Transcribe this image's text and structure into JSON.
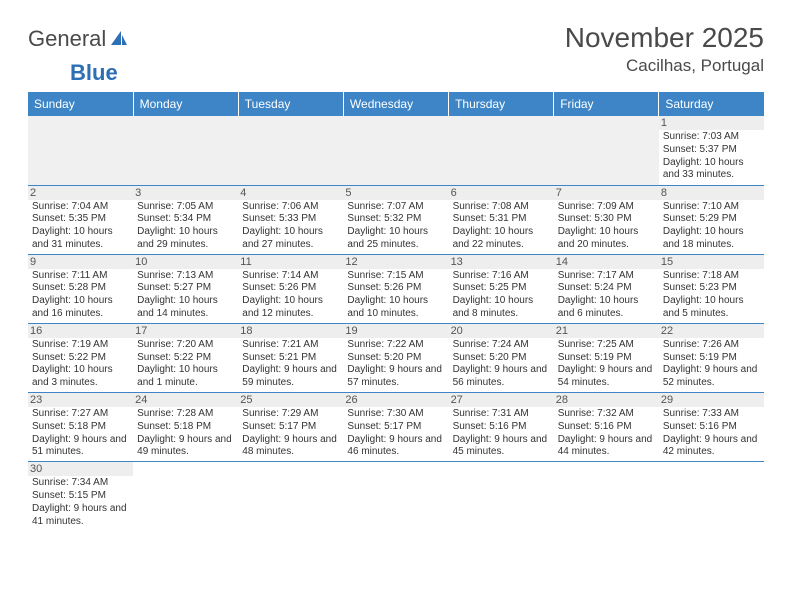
{
  "logo": {
    "text1": "General",
    "text2": "Blue"
  },
  "title": "November 2025",
  "location": "Cacilhas, Portugal",
  "colors": {
    "header_bg": "#3d85c6",
    "header_text": "#ffffff",
    "daynum_bg": "#eeeeee",
    "border": "#3d85c6",
    "text": "#333333"
  },
  "weekdays": [
    "Sunday",
    "Monday",
    "Tuesday",
    "Wednesday",
    "Thursday",
    "Friday",
    "Saturday"
  ],
  "days": {
    "1": {
      "sunrise": "7:03 AM",
      "sunset": "5:37 PM",
      "daylight": "10 hours and 33 minutes."
    },
    "2": {
      "sunrise": "7:04 AM",
      "sunset": "5:35 PM",
      "daylight": "10 hours and 31 minutes."
    },
    "3": {
      "sunrise": "7:05 AM",
      "sunset": "5:34 PM",
      "daylight": "10 hours and 29 minutes."
    },
    "4": {
      "sunrise": "7:06 AM",
      "sunset": "5:33 PM",
      "daylight": "10 hours and 27 minutes."
    },
    "5": {
      "sunrise": "7:07 AM",
      "sunset": "5:32 PM",
      "daylight": "10 hours and 25 minutes."
    },
    "6": {
      "sunrise": "7:08 AM",
      "sunset": "5:31 PM",
      "daylight": "10 hours and 22 minutes."
    },
    "7": {
      "sunrise": "7:09 AM",
      "sunset": "5:30 PM",
      "daylight": "10 hours and 20 minutes."
    },
    "8": {
      "sunrise": "7:10 AM",
      "sunset": "5:29 PM",
      "daylight": "10 hours and 18 minutes."
    },
    "9": {
      "sunrise": "7:11 AM",
      "sunset": "5:28 PM",
      "daylight": "10 hours and 16 minutes."
    },
    "10": {
      "sunrise": "7:13 AM",
      "sunset": "5:27 PM",
      "daylight": "10 hours and 14 minutes."
    },
    "11": {
      "sunrise": "7:14 AM",
      "sunset": "5:26 PM",
      "daylight": "10 hours and 12 minutes."
    },
    "12": {
      "sunrise": "7:15 AM",
      "sunset": "5:26 PM",
      "daylight": "10 hours and 10 minutes."
    },
    "13": {
      "sunrise": "7:16 AM",
      "sunset": "5:25 PM",
      "daylight": "10 hours and 8 minutes."
    },
    "14": {
      "sunrise": "7:17 AM",
      "sunset": "5:24 PM",
      "daylight": "10 hours and 6 minutes."
    },
    "15": {
      "sunrise": "7:18 AM",
      "sunset": "5:23 PM",
      "daylight": "10 hours and 5 minutes."
    },
    "16": {
      "sunrise": "7:19 AM",
      "sunset": "5:22 PM",
      "daylight": "10 hours and 3 minutes."
    },
    "17": {
      "sunrise": "7:20 AM",
      "sunset": "5:22 PM",
      "daylight": "10 hours and 1 minute."
    },
    "18": {
      "sunrise": "7:21 AM",
      "sunset": "5:21 PM",
      "daylight": "9 hours and 59 minutes."
    },
    "19": {
      "sunrise": "7:22 AM",
      "sunset": "5:20 PM",
      "daylight": "9 hours and 57 minutes."
    },
    "20": {
      "sunrise": "7:24 AM",
      "sunset": "5:20 PM",
      "daylight": "9 hours and 56 minutes."
    },
    "21": {
      "sunrise": "7:25 AM",
      "sunset": "5:19 PM",
      "daylight": "9 hours and 54 minutes."
    },
    "22": {
      "sunrise": "7:26 AM",
      "sunset": "5:19 PM",
      "daylight": "9 hours and 52 minutes."
    },
    "23": {
      "sunrise": "7:27 AM",
      "sunset": "5:18 PM",
      "daylight": "9 hours and 51 minutes."
    },
    "24": {
      "sunrise": "7:28 AM",
      "sunset": "5:18 PM",
      "daylight": "9 hours and 49 minutes."
    },
    "25": {
      "sunrise": "7:29 AM",
      "sunset": "5:17 PM",
      "daylight": "9 hours and 48 minutes."
    },
    "26": {
      "sunrise": "7:30 AM",
      "sunset": "5:17 PM",
      "daylight": "9 hours and 46 minutes."
    },
    "27": {
      "sunrise": "7:31 AM",
      "sunset": "5:16 PM",
      "daylight": "9 hours and 45 minutes."
    },
    "28": {
      "sunrise": "7:32 AM",
      "sunset": "5:16 PM",
      "daylight": "9 hours and 44 minutes."
    },
    "29": {
      "sunrise": "7:33 AM",
      "sunset": "5:16 PM",
      "daylight": "9 hours and 42 minutes."
    },
    "30": {
      "sunrise": "7:34 AM",
      "sunset": "5:15 PM",
      "daylight": "9 hours and 41 minutes."
    }
  },
  "layout": {
    "first_weekday_index": 6,
    "num_days": 30,
    "fontsize_info": 10,
    "fontsize_daynum": 11,
    "fontsize_header": 12
  },
  "labels": {
    "sunrise": "Sunrise:",
    "sunset": "Sunset:",
    "daylight": "Daylight:"
  }
}
